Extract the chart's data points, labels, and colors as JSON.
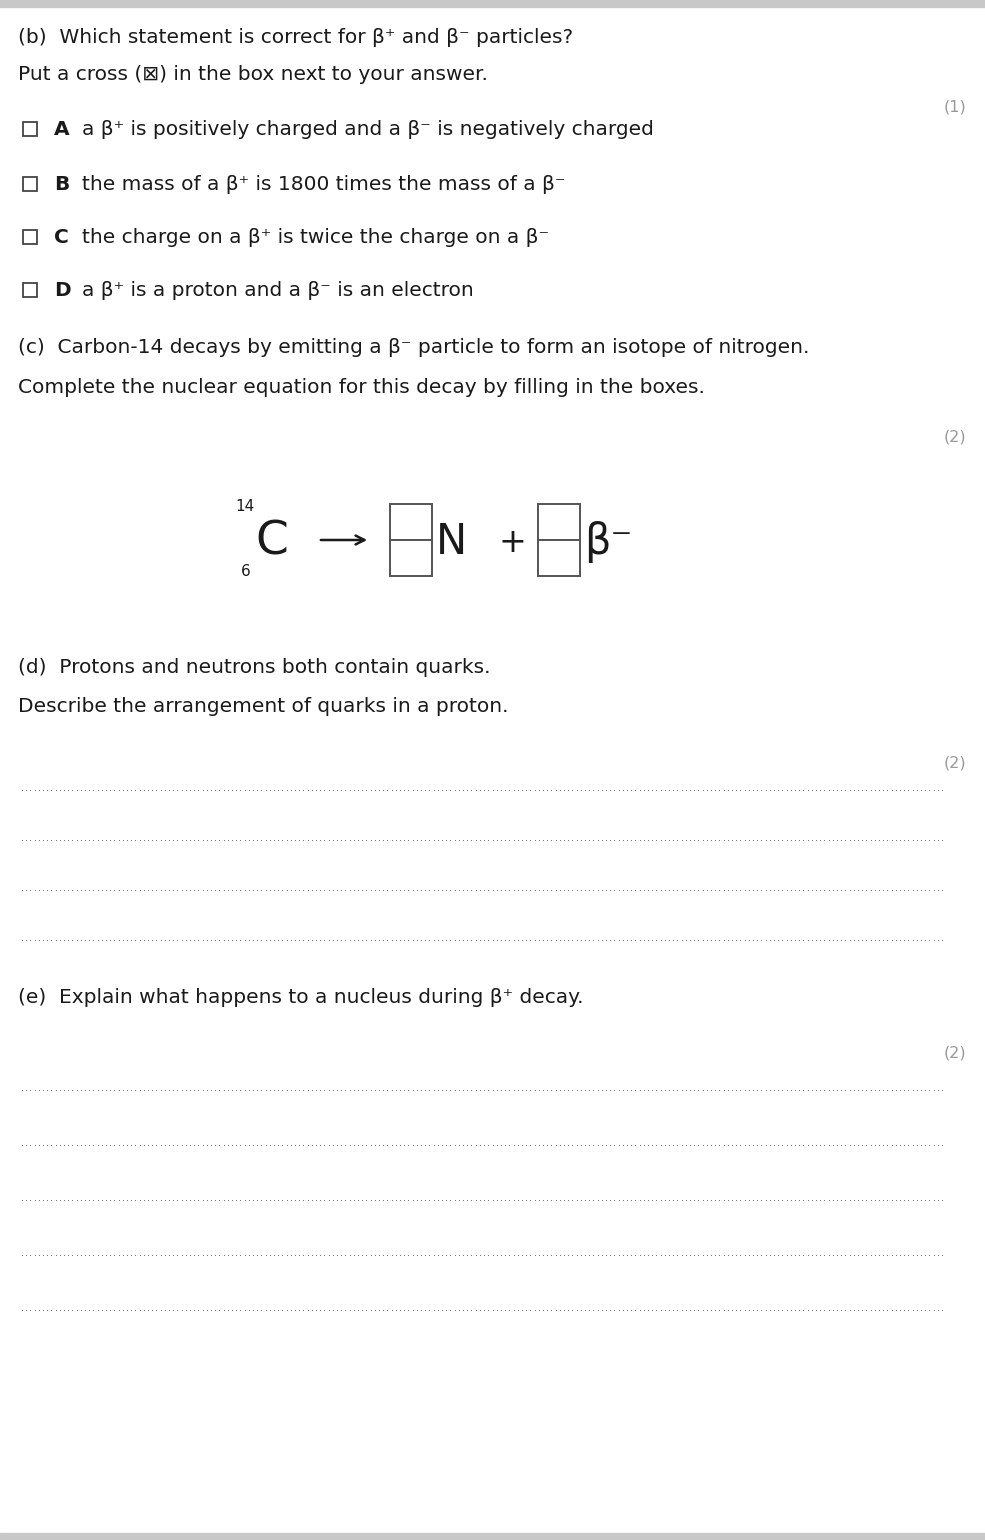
{
  "background_color": "#ffffff",
  "top_bar_color": "#c8c8c8",
  "text_color": "#1a1a1a",
  "mark_color": "#999999",
  "line_color": "#333333",
  "dot_color": "#555555",
  "section_b": {
    "question": "(b)  Which statement is correct for β⁺ and β⁻ particles?",
    "instruction": "Put a cross (⊠) in the box next to your answer.",
    "mark": "(1)",
    "options": [
      {
        "label": "A",
        "text": "a β⁺ is positively charged and a β⁻ is negatively charged"
      },
      {
        "label": "B",
        "text": "the mass of a β⁺ is 1800 times the mass of a β⁻"
      },
      {
        "label": "C",
        "text": "the charge on a β⁺ is twice the charge on a β⁻"
      },
      {
        "label": "D",
        "text": "a β⁺ is a proton and a β⁻ is an electron"
      }
    ]
  },
  "section_c": {
    "question": "(c)  Carbon-14 decays by emitting a β⁻ particle to form an isotope of nitrogen.",
    "instruction": "Complete the nuclear equation for this decay by filling in the boxes.",
    "mark": "(2)"
  },
  "section_d": {
    "question": "(d)  Protons and neutrons both contain quarks.",
    "instruction": "Describe the arrangement of quarks in a proton.",
    "mark": "(2)",
    "lines": 4
  },
  "section_e": {
    "question": "(e)  Explain what happens to a nucleus during β⁺ decay.",
    "mark": "(2)",
    "lines": 5
  }
}
